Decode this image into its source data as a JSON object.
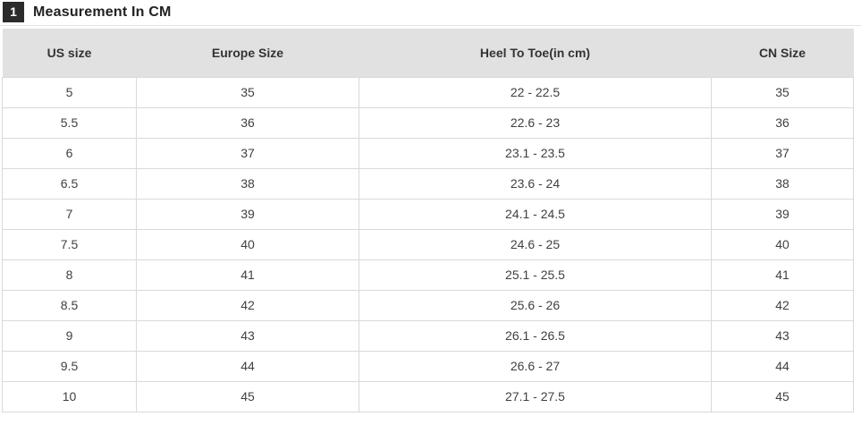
{
  "header": {
    "number": "1",
    "title": "Measurement In CM"
  },
  "colors": {
    "badge_bg": "#2b2b2b",
    "badge_text": "#ffffff",
    "header_row_bg": "#e1e1e1",
    "border": "#d9d9d9",
    "cell_text": "#404040",
    "divider": "#e4e4e4"
  },
  "chart_data": {
    "type": "table",
    "title": "Measurement In CM",
    "columns": [
      "US size",
      "Europe Size",
      "Heel To Toe(in cm)",
      "CN Size"
    ],
    "rows": [
      [
        "5",
        "35",
        "22 - 22.5",
        "35"
      ],
      [
        "5.5",
        "36",
        "22.6 - 23",
        "36"
      ],
      [
        "6",
        "37",
        "23.1 - 23.5",
        "37"
      ],
      [
        "6.5",
        "38",
        "23.6 - 24",
        "38"
      ],
      [
        "7",
        "39",
        "24.1 - 24.5",
        "39"
      ],
      [
        "7.5",
        "40",
        "24.6 - 25",
        "40"
      ],
      [
        "8",
        "41",
        "25.1 - 25.5",
        "41"
      ],
      [
        "8.5",
        "42",
        "25.6 - 26",
        "42"
      ],
      [
        "9",
        "43",
        "26.1 - 26.5",
        "43"
      ],
      [
        "9.5",
        "44",
        "26.6 - 27",
        "44"
      ],
      [
        "10",
        "45",
        "27.1 - 27.5",
        "45"
      ]
    ]
  }
}
